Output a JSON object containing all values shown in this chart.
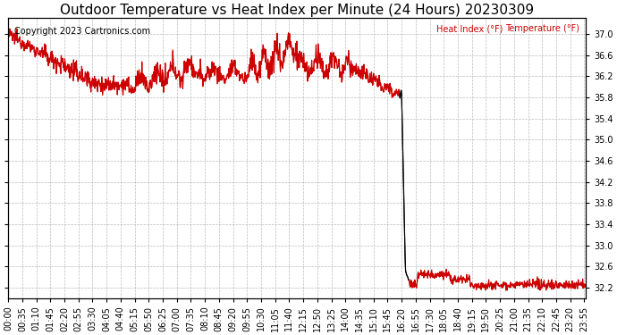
{
  "title": "Outdoor Temperature vs Heat Index per Minute (24 Hours) 20230309",
  "copyright": "Copyright 2023 Cartronics.com",
  "legend_labels": [
    "Heat Index (°F)",
    "Temperature (°F)"
  ],
  "legend_color": "#cc0000",
  "line_color_red": "#cc0000",
  "line_color_black": "#000000",
  "ylim": [
    32.0,
    37.3
  ],
  "yticks": [
    32.2,
    32.6,
    33.0,
    33.4,
    33.8,
    34.2,
    34.6,
    35.0,
    35.4,
    35.8,
    36.2,
    36.6,
    37.0
  ],
  "background_color": "#ffffff",
  "grid_color": "#aaaaaa",
  "title_fontsize": 11,
  "tick_fontsize": 7,
  "copyright_fontsize": 7
}
